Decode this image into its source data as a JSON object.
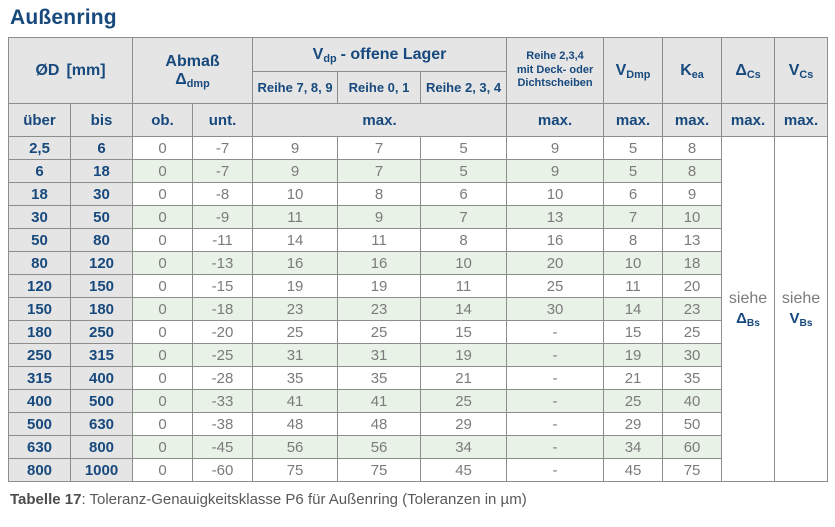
{
  "title": "Außenring",
  "colors": {
    "header_blue": "#17497d",
    "header_bg": "#e5e5e5",
    "row_green": "#e9f2e7",
    "border_gray": "#8d8d8d",
    "data_text": "#7b7b7b"
  },
  "header": {
    "d_base": "ØD",
    "d_unit": "[mm]",
    "abmass_line1": "Abmaß",
    "abmass_base": "Δ",
    "abmass_sub": "dmp",
    "vdp_base": "V",
    "vdp_sub": "dp",
    "vdp_rest": "-  offene Lager",
    "reihe789": "Reihe 7, 8, 9",
    "reihe01": "Reihe 0, 1",
    "reihe234": "Reihe 2, 3, 4",
    "deck_line1": "Reihe 2,3,4",
    "deck_line2": "mit Deck- oder",
    "deck_line3": "Dichtscheiben",
    "vdmp_base": "V",
    "vdmp_sub": "Dmp",
    "kea_base": "K",
    "kea_sub": "ea",
    "dcs_base": "Δ",
    "dcs_sub": "Cs",
    "vcs_base": "V",
    "vcs_sub": "Cs",
    "ueber": "über",
    "bis": "bis",
    "ob": "ob.",
    "unt": "unt.",
    "max": "max."
  },
  "see_refs": {
    "dcs": {
      "siehe": "siehe",
      "base": "Δ",
      "sub": "Bs"
    },
    "vcs": {
      "siehe": "siehe",
      "base": "V",
      "sub": "Bs"
    }
  },
  "table": {
    "columns": [
      "über",
      "bis",
      "ob.",
      "unt.",
      "Reihe 7,8,9",
      "Reihe 0,1",
      "Reihe 2,3,4",
      "Reihe 2,3,4 mit Deck- oder Dichtscheiben",
      "VDmp",
      "Kea"
    ],
    "rows": [
      [
        "2,5",
        "6",
        "0",
        "-7",
        "9",
        "7",
        "5",
        "9",
        "5",
        "8"
      ],
      [
        "6",
        "18",
        "0",
        "-7",
        "9",
        "7",
        "5",
        "9",
        "5",
        "8"
      ],
      [
        "18",
        "30",
        "0",
        "-8",
        "10",
        "8",
        "6",
        "10",
        "6",
        "9"
      ],
      [
        "30",
        "50",
        "0",
        "-9",
        "11",
        "9",
        "7",
        "13",
        "7",
        "10"
      ],
      [
        "50",
        "80",
        "0",
        "-11",
        "14",
        "11",
        "8",
        "16",
        "8",
        "13"
      ],
      [
        "80",
        "120",
        "0",
        "-13",
        "16",
        "16",
        "10",
        "20",
        "10",
        "18"
      ],
      [
        "120",
        "150",
        "0",
        "-15",
        "19",
        "19",
        "11",
        "25",
        "11",
        "20"
      ],
      [
        "150",
        "180",
        "0",
        "-18",
        "23",
        "23",
        "14",
        "30",
        "14",
        "23"
      ],
      [
        "180",
        "250",
        "0",
        "-20",
        "25",
        "25",
        "15",
        "-",
        "15",
        "25"
      ],
      [
        "250",
        "315",
        "0",
        "-25",
        "31",
        "31",
        "19",
        "-",
        "19",
        "30"
      ],
      [
        "315",
        "400",
        "0",
        "-28",
        "35",
        "35",
        "21",
        "-",
        "21",
        "35"
      ],
      [
        "400",
        "500",
        "0",
        "-33",
        "41",
        "41",
        "25",
        "-",
        "25",
        "40"
      ],
      [
        "500",
        "630",
        "0",
        "-38",
        "48",
        "48",
        "29",
        "-",
        "29",
        "50"
      ],
      [
        "630",
        "800",
        "0",
        "-45",
        "56",
        "56",
        "34",
        "-",
        "34",
        "60"
      ],
      [
        "800",
        "1000",
        "0",
        "-60",
        "75",
        "75",
        "45",
        "-",
        "45",
        "75"
      ]
    ]
  },
  "caption": {
    "label": "Tabelle 17",
    "text": ": Toleranz-Genauigkeitsklasse P6 für Außenring (Toleranzen in µm)"
  }
}
